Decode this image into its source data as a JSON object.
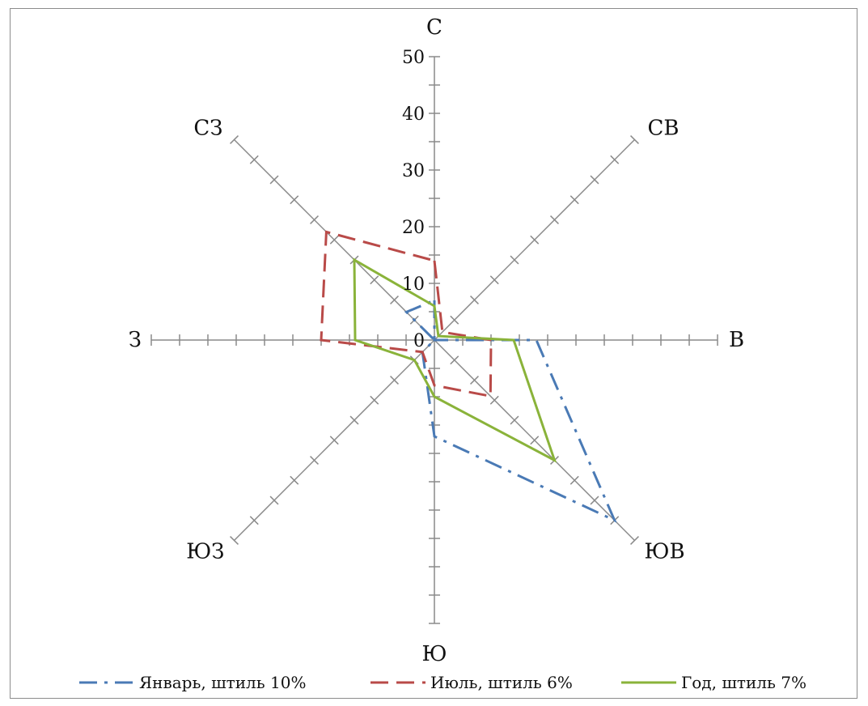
{
  "chart_data": {
    "type": "radar",
    "directions": [
      "С",
      "СВ",
      "В",
      "ЮВ",
      "Ю",
      "ЮЗ",
      "З",
      "СЗ"
    ],
    "radial_ticks": [
      "0",
      "10",
      "20",
      "30",
      "40",
      "50"
    ],
    "rmax": 50,
    "tick_step": 5,
    "grid": false,
    "legend_position": "bottom",
    "series": [
      {
        "name": "Январь, штиль 10%",
        "values": [
          7,
          0,
          18,
          45,
          17,
          3,
          0,
          7
        ],
        "color": "#4a7ab5",
        "dash": "dashdot"
      },
      {
        "name": "Июль, штиль 6%",
        "values": [
          14,
          2,
          10,
          14,
          8,
          3,
          20,
          27
        ],
        "color": "#b94a48",
        "dash": "dashed"
      },
      {
        "name": "Год, штиль 7%",
        "values": [
          6,
          1,
          14,
          30,
          10,
          5,
          14,
          20
        ],
        "color": "#8ab33a",
        "dash": "solid"
      }
    ]
  }
}
